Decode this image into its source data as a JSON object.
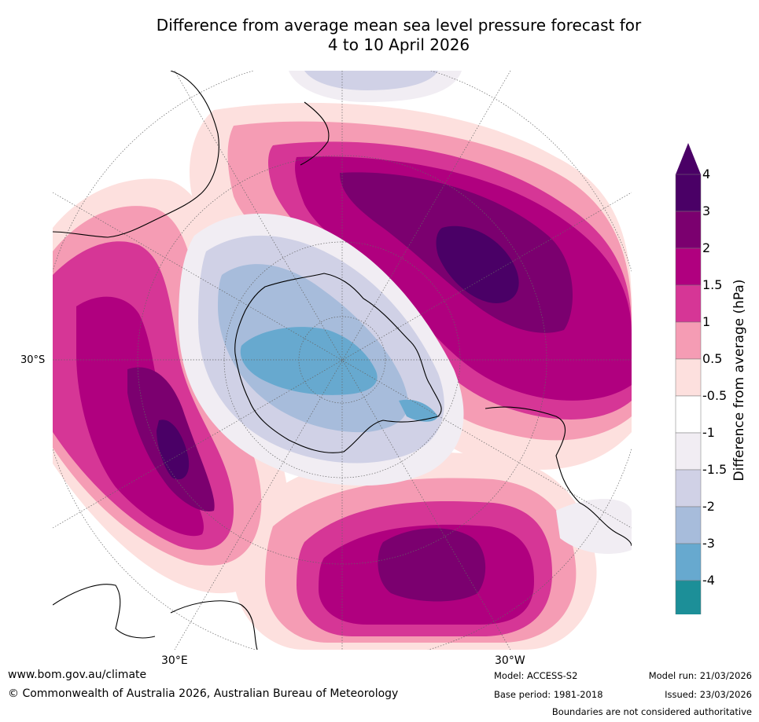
{
  "title_line1": "Difference from average mean sea level pressure forecast for",
  "title_line2": "4 to 10 April 2026",
  "map": {
    "projection": "south-polar-stereographic",
    "lat_label": "30°S",
    "lon_labels": [
      "30°E",
      "30°W"
    ]
  },
  "colorbar": {
    "label": "Difference from average (hPa)",
    "ticks": [
      "4",
      "3",
      "2",
      "1.5",
      "1",
      "0.5",
      "-0.5",
      "-1",
      "-1.5",
      "-2",
      "-3",
      "-4"
    ],
    "colors": [
      "#4a0066",
      "#7b006f",
      "#b0007f",
      "#d63696",
      "#f59cb4",
      "#fde0de",
      "#ffffff",
      "#f1edf3",
      "#d0d1e6",
      "#a7bcdb",
      "#67a9cf",
      "#1c8f98",
      "#006e5a"
    ],
    "min_arrow_color": "#006e5a",
    "max_arrow_color": "#4a0066"
  },
  "footer": {
    "website": "www.bom.gov.au/climate",
    "copyright": "© Commonwealth of Australia 2026, Australian Bureau of Meteorology",
    "model": "Model: ACCESS-S2",
    "base_period": "Base period: 1981-2018",
    "model_run": "Model run: 21/03/2026",
    "issued": "Issued: 23/03/2026",
    "disclaimer": "Boundaries are not considered authoritative"
  }
}
